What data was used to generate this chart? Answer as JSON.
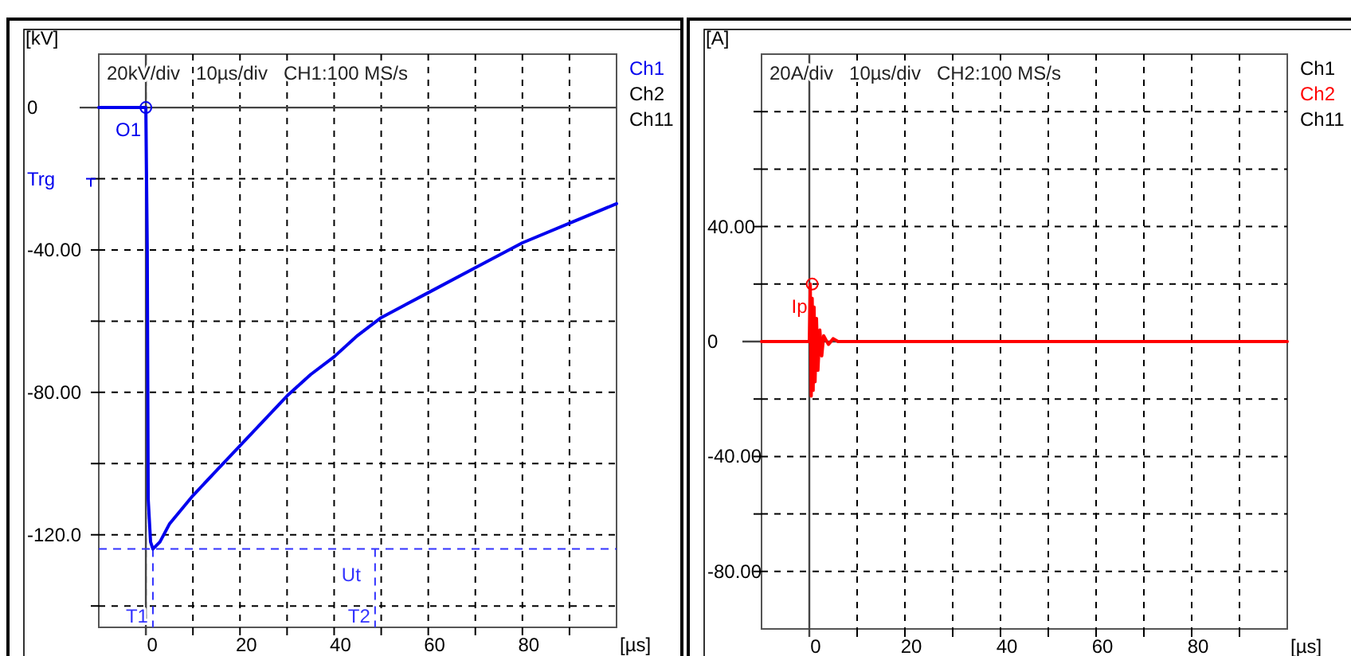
{
  "chart_data": [
    {
      "type": "line",
      "title": "20kV/div   10µs/div   CH1:100 MS/s",
      "xlabel": "[µs]",
      "ylabel": "[kV]",
      "xlim": [
        -10,
        100
      ],
      "xticks": [
        0,
        {
          "value": 10,
          "label": null
        },
        20,
        {
          "value": 30,
          "label": null
        },
        40,
        {
          "value": 50,
          "label": null
        },
        60,
        {
          "value": 70,
          "label": null
        },
        80,
        {
          "value": 90,
          "label": null
        }
      ],
      "ylim": [
        -146,
        15
      ],
      "yticks": [
        0,
        {
          "value": -20,
          "label": null
        },
        {
          "value": -40,
          "label": "-40.00"
        },
        {
          "value": -60,
          "label": null
        },
        {
          "value": -80,
          "label": "-80.00"
        },
        {
          "value": -100,
          "label": null
        },
        {
          "value": -120,
          "label": "-120.0"
        },
        {
          "value": -140,
          "label": null
        }
      ],
      "grid": true,
      "legend": "right",
      "line_style": "solid",
      "series": [
        {
          "name": "Ch1",
          "color": "#0000ee",
          "x": [
            -10,
            0,
            0.3,
            0.5,
            1,
            1.5,
            3,
            5,
            10,
            15,
            20,
            25,
            30,
            35,
            40,
            45,
            50,
            60,
            70,
            80,
            90,
            100
          ],
          "values": [
            0,
            0,
            -40,
            -110,
            -122,
            -124,
            -122,
            -117,
            -109,
            -102,
            -95,
            -88,
            -81,
            -75,
            -70,
            -64,
            -59,
            -52,
            -45,
            -38,
            -32.5,
            -27
          ]
        },
        {
          "name": "Ch2",
          "color": "#000000"
        },
        {
          "name": "Ch11",
          "color": "#000000"
        }
      ],
      "ref_lines": [
        {
          "axis": "y",
          "value": -124,
          "label": "Ut",
          "color": "#3333ff",
          "line_style": "dashed"
        },
        {
          "axis": "x",
          "value": 1.5,
          "label": "T1",
          "color": "#3333ff",
          "line_style": "dashed"
        },
        {
          "axis": "x",
          "value": 48.7,
          "label": "T2",
          "color": "#3333ff",
          "line_style": "dashed"
        }
      ],
      "annotations": [
        {
          "text": "O1",
          "x": 0,
          "y": 0
        },
        "Trg"
      ]
    },
    {
      "type": "line",
      "title": "20A/div   10µs/div   CH2:100 MS/s",
      "xlabel": "[µs]",
      "ylabel": "[A]",
      "xlim": [
        -10,
        100
      ],
      "xticks": [
        0,
        {
          "value": 10,
          "label": null
        },
        20,
        {
          "value": 30,
          "label": null
        },
        40,
        {
          "value": 50,
          "label": null
        },
        60,
        {
          "value": 70,
          "label": null
        },
        80,
        {
          "value": 90,
          "label": null
        }
      ],
      "ylim": [
        -100,
        100
      ],
      "yticks": [
        {
          "value": 80,
          "label": null
        },
        {
          "value": 60,
          "label": null
        },
        {
          "value": 40,
          "label": "40.00"
        },
        {
          "value": 20,
          "label": null
        },
        0,
        {
          "value": -20,
          "label": null
        },
        {
          "value": -40,
          "label": "-40.00"
        },
        {
          "value": -60,
          "label": null
        },
        {
          "value": -80,
          "label": "-80.00"
        }
      ],
      "grid": true,
      "legend": "right",
      "line_style": "solid",
      "series": [
        {
          "name": "Ch1",
          "color": "#000000"
        },
        {
          "name": "Ch2",
          "color": "#ff0000",
          "x": [
            -10,
            0,
            0.2,
            0.4,
            0.6,
            0.8,
            1,
            1.2,
            1.5,
            1.8,
            2.2,
            2.6,
            3,
            4,
            5,
            6,
            100
          ],
          "values": [
            0,
            0,
            20,
            -19,
            15,
            -17,
            12,
            -14,
            8,
            -10,
            4,
            -5,
            2,
            -1,
            1,
            0,
            0
          ]
        },
        {
          "name": "Ch11",
          "color": "#000000"
        }
      ],
      "annotations": [
        {
          "text": "Ip",
          "x": 0.6,
          "y": 20
        }
      ]
    }
  ]
}
